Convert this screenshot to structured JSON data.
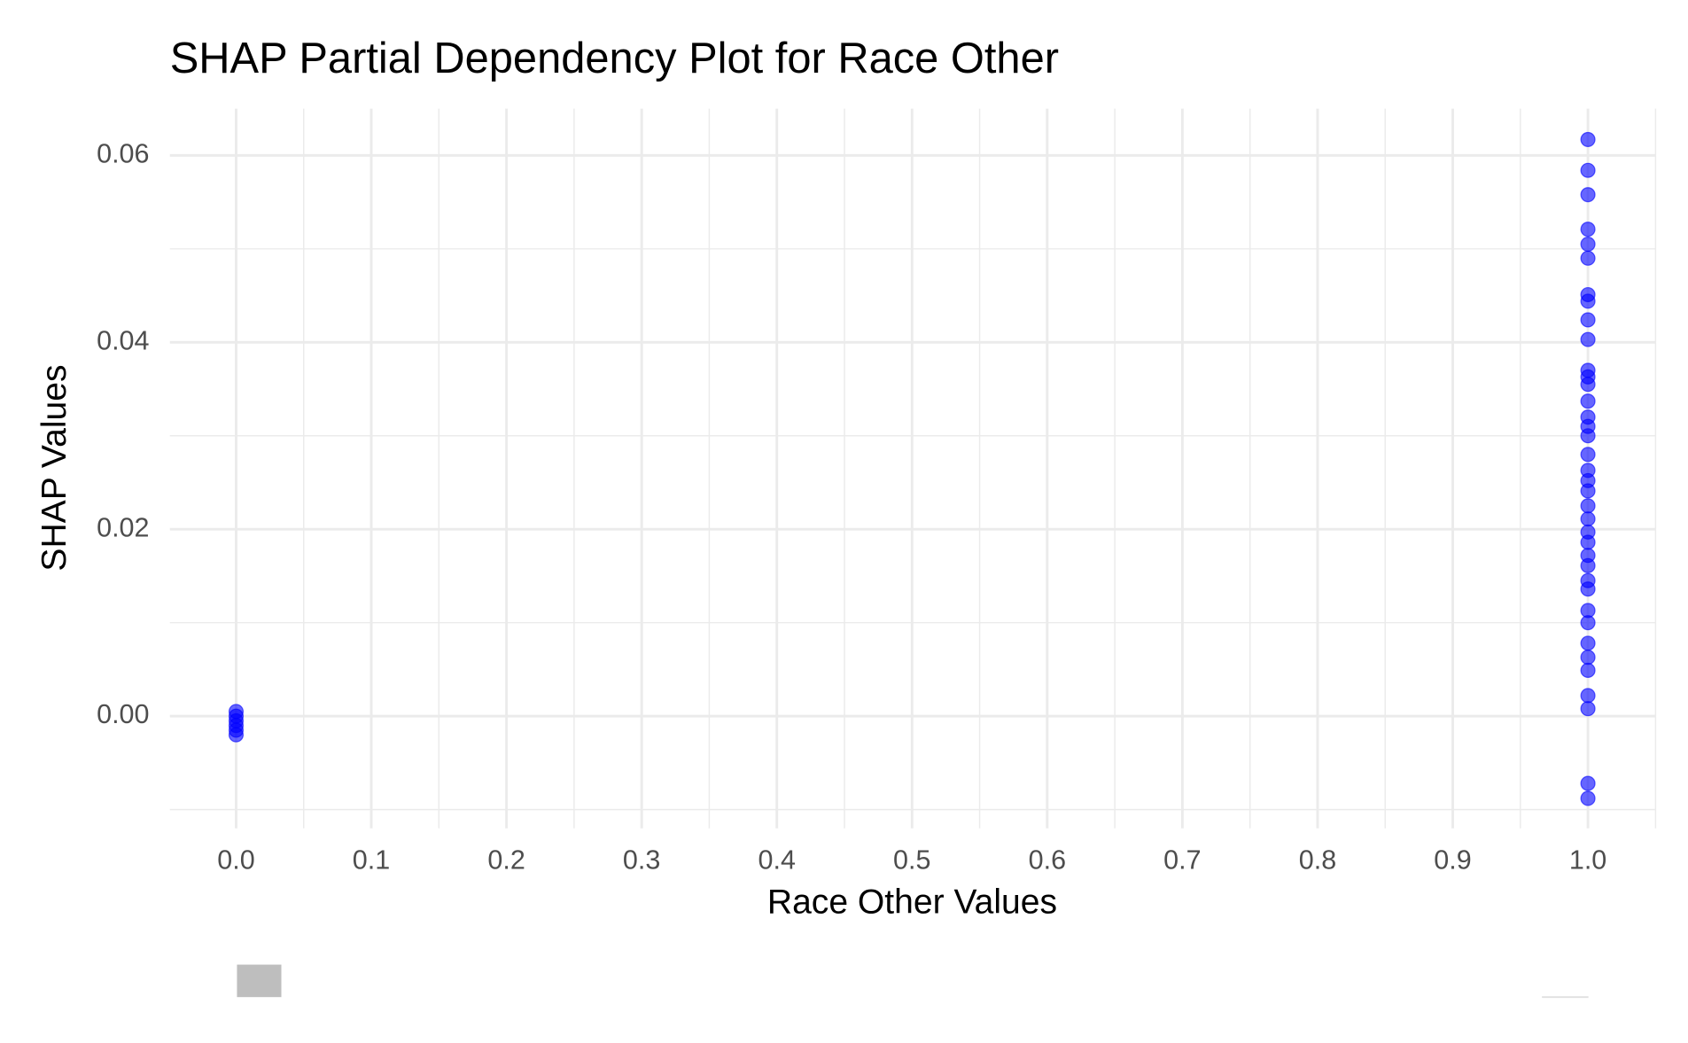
{
  "chart_data": {
    "type": "scatter",
    "title": "SHAP Partial Dependency Plot for Race Other",
    "x_label": "Race Other Values",
    "y_label": "SHAP Values",
    "x": [
      0,
      0,
      0,
      0,
      0,
      0,
      1,
      1,
      1,
      1,
      1,
      1,
      1,
      1,
      1,
      1,
      1,
      1,
      1,
      1,
      1,
      1,
      1,
      1,
      1,
      1,
      1,
      1,
      1,
      1,
      1,
      1,
      1,
      1,
      1,
      1,
      1,
      1,
      1,
      1,
      1,
      1,
      1,
      1
    ],
    "y": [
      0.0005,
      0,
      -0.0005,
      -0.001,
      -0.0015,
      -0.002,
      0.0617,
      0.0584,
      0.0558,
      0.0521,
      0.0505,
      0.049,
      0.0451,
      0.0444,
      0.0424,
      0.0403,
      0.037,
      0.0363,
      0.0355,
      0.0337,
      0.032,
      0.031,
      0.03,
      0.028,
      0.0263,
      0.0252,
      0.0241,
      0.0225,
      0.0211,
      0.0197,
      0.0186,
      0.0172,
      0.0161,
      0.0145,
      0.0136,
      0.0113,
      0.01,
      0.0078,
      0.0063,
      0.0049,
      0.0022,
      0.0008,
      -0.0072,
      -0.0088
    ],
    "color": "#0000ff",
    "xlim": [
      -0.049,
      1.05
    ],
    "ylim": [
      -0.012,
      0.065
    ],
    "xticks": [
      {
        "value": 0,
        "label": "0.0"
      },
      0.1,
      0.2,
      0.3,
      0.4,
      0.5,
      0.6,
      0.7,
      0.8,
      0.9,
      {
        "value": 1,
        "label": "1.0"
      }
    ],
    "yticks": [
      {
        "value": 0,
        "label": "0.00"
      },
      {
        "value": 0.02,
        "label": "0.02"
      },
      {
        "value": 0.04,
        "label": "0.04"
      },
      {
        "value": 0.06,
        "label": "0.06"
      }
    ],
    "grid": true
  }
}
